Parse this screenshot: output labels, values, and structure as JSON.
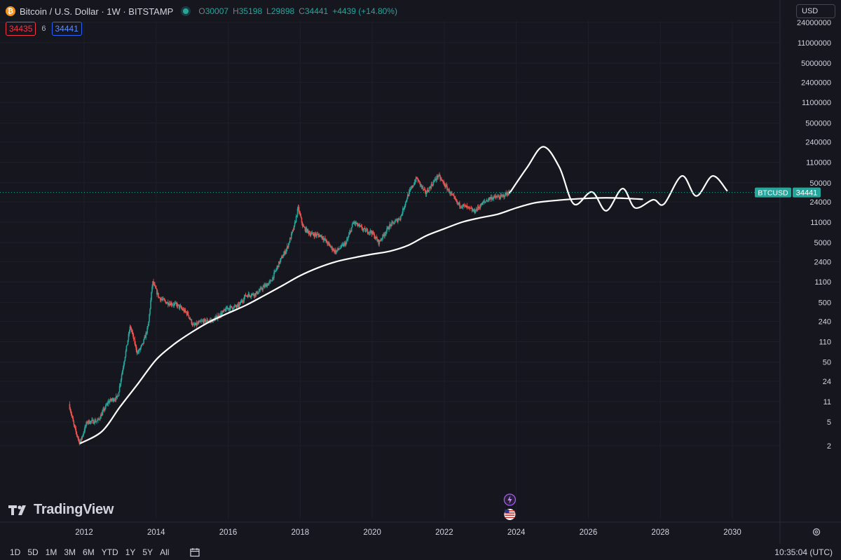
{
  "header": {
    "symbol_title": "Bitcoin / U.S. Dollar · 1W · BITSTAMP",
    "open_label": "O",
    "open": "30007",
    "high_label": "H",
    "high": "35198",
    "low_label": "L",
    "low": "29898",
    "close_label": "C",
    "close": "34441",
    "change": "+4439 (+14.80%)",
    "coin_icon": "bitcoin-icon",
    "live_indicator": "market-open-dot"
  },
  "trade": {
    "bid": "34435",
    "spread": "6",
    "ask": "34441"
  },
  "currency": "USD",
  "price_tag": {
    "symbol": "BTCUSD",
    "value": "34441"
  },
  "bottom": {
    "timeframes": [
      "1D",
      "5D",
      "1M",
      "3M",
      "6M",
      "YTD",
      "1Y",
      "5Y",
      "All"
    ],
    "clock": "10:35:04 (UTC)"
  },
  "logo": {
    "text": "TradingView"
  },
  "colors": {
    "background": "#16161f",
    "up": "#26a69a",
    "down": "#ef5350",
    "drawing": "#ffffff",
    "tag": "#26a69a"
  },
  "chart_data": {
    "type": "candlestick",
    "scale": "log",
    "y_ticks": [
      2,
      5,
      11,
      24,
      50,
      110,
      240,
      500,
      1100,
      2400,
      5000,
      11000,
      24000,
      50000,
      110000,
      240000,
      500000,
      1100000,
      2400000,
      5000000,
      11000000,
      24000000
    ],
    "x_ticks": [
      "2012",
      "2014",
      "2016",
      "2018",
      "2020",
      "2022",
      "2024",
      "2026",
      "2028",
      "2030"
    ],
    "x_range": [
      2011.7,
      2030.8
    ],
    "last_price": 34441,
    "price_path": [
      [
        2011.6,
        10
      ],
      [
        2011.75,
        4
      ],
      [
        2011.9,
        2.2
      ],
      [
        2012.1,
        5
      ],
      [
        2012.4,
        5.2
      ],
      [
        2012.7,
        11
      ],
      [
        2012.95,
        13
      ],
      [
        2013.2,
        90
      ],
      [
        2013.3,
        200
      ],
      [
        2013.5,
        70
      ],
      [
        2013.65,
        100
      ],
      [
        2013.8,
        200
      ],
      [
        2013.92,
        1100
      ],
      [
        2014.1,
        600
      ],
      [
        2014.3,
        500
      ],
      [
        2014.6,
        450
      ],
      [
        2014.9,
        320
      ],
      [
        2015.05,
        200
      ],
      [
        2015.3,
        240
      ],
      [
        2015.6,
        250
      ],
      [
        2015.85,
        330
      ],
      [
        2016.0,
        400
      ],
      [
        2016.3,
        430
      ],
      [
        2016.5,
        650
      ],
      [
        2016.8,
        700
      ],
      [
        2017.0,
        900
      ],
      [
        2017.2,
        1100
      ],
      [
        2017.45,
        2400
      ],
      [
        2017.65,
        4000
      ],
      [
        2017.85,
        9000
      ],
      [
        2017.96,
        19000
      ],
      [
        2018.1,
        9000
      ],
      [
        2018.3,
        7000
      ],
      [
        2018.6,
        6500
      ],
      [
        2018.9,
        4000
      ],
      [
        2019.0,
        3500
      ],
      [
        2019.3,
        5000
      ],
      [
        2019.5,
        11000
      ],
      [
        2019.8,
        8000
      ],
      [
        2020.0,
        7500
      ],
      [
        2020.2,
        5000
      ],
      [
        2020.5,
        9500
      ],
      [
        2020.8,
        13000
      ],
      [
        2021.0,
        30000
      ],
      [
        2021.25,
        60000
      ],
      [
        2021.5,
        33000
      ],
      [
        2021.85,
        66000
      ],
      [
        2022.1,
        40000
      ],
      [
        2022.4,
        22000
      ],
      [
        2022.6,
        20000
      ],
      [
        2022.85,
        16500
      ],
      [
        2023.1,
        23000
      ],
      [
        2023.3,
        28000
      ],
      [
        2023.6,
        29000
      ],
      [
        2023.82,
        34441
      ]
    ],
    "drawings": {
      "trend_curve": [
        [
          2011.9,
          2.2
        ],
        [
          2012.5,
          3.5
        ],
        [
          2013.0,
          9
        ],
        [
          2013.5,
          22
        ],
        [
          2014.0,
          55
        ],
        [
          2014.5,
          100
        ],
        [
          2015.0,
          160
        ],
        [
          2015.5,
          240
        ],
        [
          2016.0,
          330
        ],
        [
          2016.5,
          450
        ],
        [
          2017.0,
          650
        ],
        [
          2017.5,
          950
        ],
        [
          2018.0,
          1400
        ],
        [
          2018.5,
          1900
        ],
        [
          2019.0,
          2400
        ],
        [
          2019.5,
          2800
        ],
        [
          2020.0,
          3200
        ],
        [
          2020.5,
          3600
        ],
        [
          2021.0,
          4500
        ],
        [
          2021.5,
          6500
        ],
        [
          2022.0,
          8500
        ],
        [
          2022.5,
          11000
        ],
        [
          2023.0,
          13000
        ],
        [
          2023.5,
          15000
        ],
        [
          2024.0,
          19000
        ],
        [
          2024.5,
          23000
        ],
        [
          2025.0,
          25000
        ],
        [
          2025.5,
          26500
        ],
        [
          2026.0,
          27500
        ],
        [
          2026.5,
          28000
        ],
        [
          2027.0,
          27500
        ],
        [
          2027.5,
          26500
        ]
      ],
      "projection": [
        [
          2023.82,
          34000
        ],
        [
          2024.3,
          90000
        ],
        [
          2024.75,
          200000
        ],
        [
          2025.2,
          90000
        ],
        [
          2025.6,
          22000
        ],
        [
          2026.1,
          35000
        ],
        [
          2026.5,
          17000
        ],
        [
          2026.95,
          40000
        ],
        [
          2027.3,
          19000
        ],
        [
          2027.8,
          26000
        ],
        [
          2028.1,
          22000
        ],
        [
          2028.6,
          65000
        ],
        [
          2029.0,
          30000
        ],
        [
          2029.45,
          65000
        ],
        [
          2029.85,
          37000
        ]
      ]
    }
  }
}
